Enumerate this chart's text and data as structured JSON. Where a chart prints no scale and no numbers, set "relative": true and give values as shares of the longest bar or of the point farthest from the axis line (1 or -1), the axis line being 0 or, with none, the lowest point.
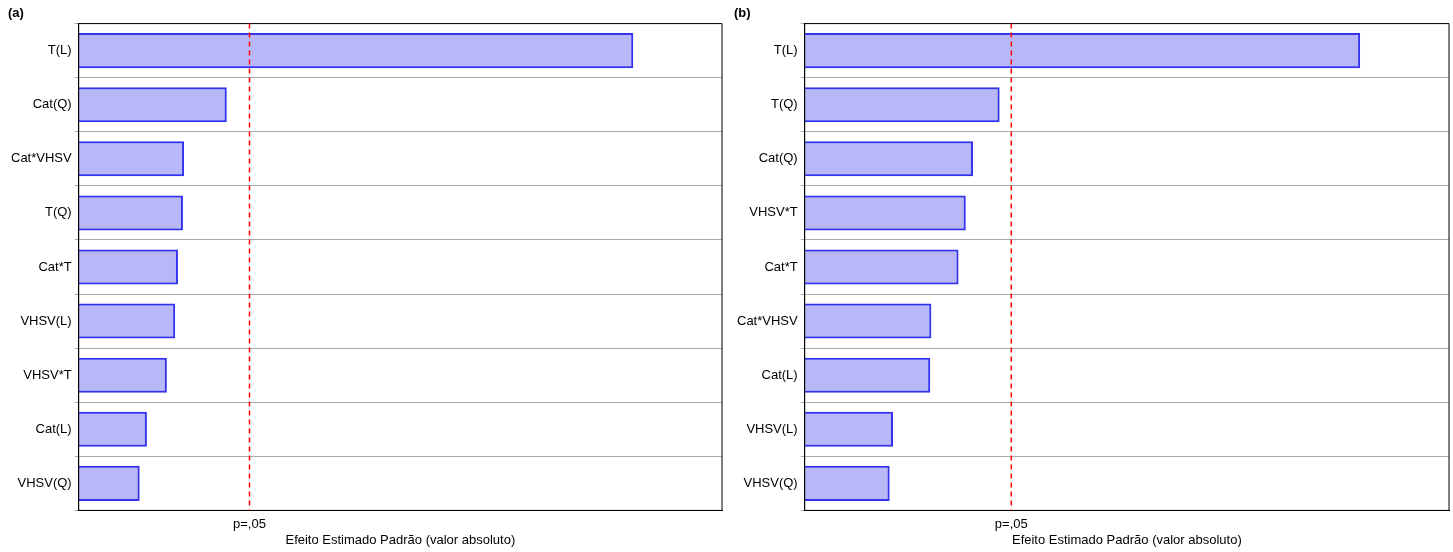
{
  "chart_data": [
    {
      "type": "bar",
      "title": "(a)",
      "orientation": "horizontal",
      "relative": true,
      "xlabel": "Efeito Estimado Padrão (valor absoluto)",
      "categories": [
        "T(L)",
        "Cat(Q)",
        "Cat*VHSV",
        "T(Q)",
        "Cat*T",
        "VHSV(L)",
        "VHSV*T",
        "Cat(L)",
        "VHSV(Q)"
      ],
      "values": [
        1,
        0.267,
        0.19,
        0.188,
        0.179,
        0.174,
        0.159,
        0.123,
        0.11
      ],
      "color": "#3333ee",
      "ref_lines": [
        {
          "axis": "x",
          "value": 0.308,
          "label": "p=,05",
          "color": "#ff0000",
          "line_style": "dashed"
        }
      ],
      "grid": "y",
      "legend": false
    },
    {
      "type": "bar",
      "title": "(b)",
      "orientation": "horizontal",
      "relative": true,
      "xlabel": "Efeito Estimado Padrão (valor absoluto)",
      "categories": [
        "T(L)",
        "T(Q)",
        "Cat(Q)",
        "VHSV*T",
        "Cat*T",
        "Cat*VHSV",
        "Cat(L)",
        "VHSV(L)",
        "VHSV(Q)"
      ],
      "values": [
        1,
        0.351,
        0.303,
        0.29,
        0.277,
        0.228,
        0.226,
        0.159,
        0.153
      ],
      "color": "#3333ee",
      "ref_lines": [
        {
          "axis": "x",
          "value": 0.372,
          "label": "p=,05",
          "color": "#ff0000",
          "line_style": "dashed"
        }
      ],
      "grid": "y",
      "legend": false
    }
  ]
}
